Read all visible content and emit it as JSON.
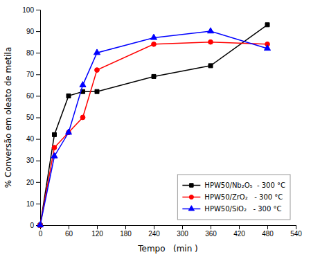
{
  "chart_data": {
    "type": "line",
    "xlabel": "Tempo   (min )",
    "ylabel": "% Conversão em oleato de metila",
    "x": [
      0,
      30,
      60,
      90,
      120,
      240,
      360,
      480
    ],
    "series": [
      {
        "name": "HPW50/Nb₂O₅  - 300 °C",
        "color": "black",
        "marker": "square",
        "line_style": "solid",
        "values": [
          0,
          42,
          60,
          62,
          62,
          69,
          74,
          93
        ]
      },
      {
        "name": "HPW50/ZrO₂   - 300 °C",
        "color": "red",
        "marker": "circle",
        "line_style": "solid",
        "values": [
          0,
          36,
          43,
          50,
          72,
          84,
          85,
          84
        ]
      },
      {
        "name": "HPW50/SiO₂   - 300 °C",
        "color": "blue",
        "marker": "triangle",
        "line_style": "solid",
        "values": [
          0,
          32,
          43,
          65,
          80,
          87,
          90,
          82
        ]
      }
    ],
    "xlim": [
      0,
      540
    ],
    "ylim": [
      0,
      100
    ],
    "xticks": [
      0,
      60,
      120,
      180,
      240,
      300,
      360,
      420,
      480,
      540
    ],
    "yticks": [
      0,
      10,
      20,
      30,
      40,
      50,
      60,
      70,
      80,
      90,
      100
    ],
    "legend": "lower right",
    "grid": false
  }
}
